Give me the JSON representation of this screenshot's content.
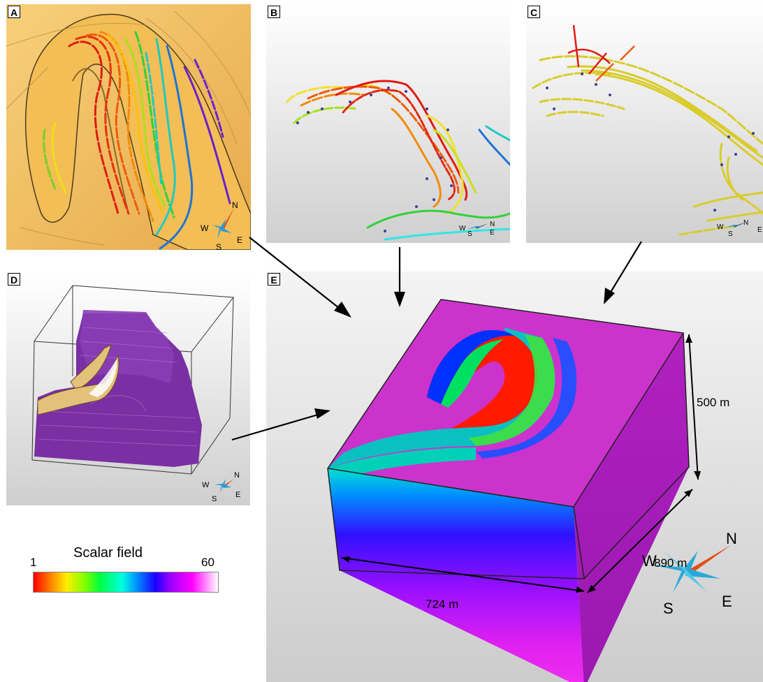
{
  "panels": {
    "a": {
      "label": "A",
      "compass": {
        "n": "N",
        "w": "W",
        "e": "E",
        "s": "S"
      }
    },
    "b": {
      "label": "B",
      "compass": {
        "n": "N",
        "w": "W",
        "e": "E",
        "s": "S"
      }
    },
    "c": {
      "label": "C",
      "compass": {
        "n": "N",
        "w": "W",
        "e": "E",
        "s": "S"
      }
    },
    "d": {
      "label": "D",
      "compass": {
        "n": "N",
        "w": "W",
        "e": "E",
        "s": "S"
      }
    },
    "e": {
      "label": "E",
      "compass": {
        "n": "N",
        "w": "W",
        "e": "E",
        "s": "S"
      },
      "dimensions": {
        "height": "500 m",
        "depth": "890 m",
        "width": "724 m"
      }
    }
  },
  "legend": {
    "title": "Scalar field",
    "min": "1",
    "max": "60"
  }
}
